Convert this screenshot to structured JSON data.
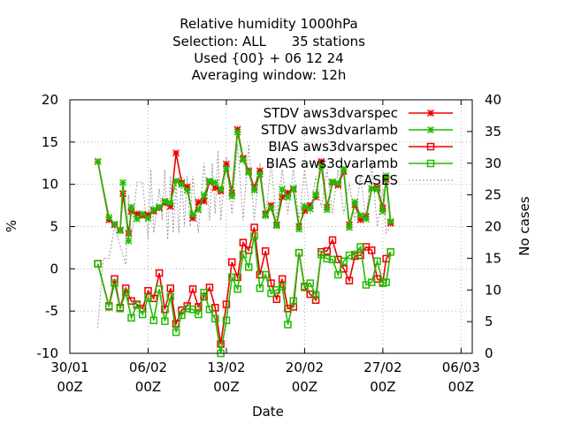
{
  "title_lines": [
    "Relative humidity 1000hPa",
    "Selection: ALL      35 stations",
    "Used {00} + 06 12 24",
    "Averaging window: 12h"
  ],
  "colors": {
    "red": "#ee0000",
    "green": "#22bb00",
    "cases": "#999999",
    "grid": "#b0b0b0"
  },
  "chart_data": {
    "type": "line",
    "title": "Relative humidity 1000hPa / Selection: ALL 35 stations / Used {00} + 06 12 24 / Averaging window: 12h",
    "xlabel": "Date",
    "ylabel": "%",
    "y2label": "No cases",
    "xlim": [
      0,
      36
    ],
    "ylim": [
      -10,
      20
    ],
    "y2lim": [
      0,
      40
    ],
    "grid": true,
    "legend_position": "top-right",
    "x_ticks": [
      {
        "x": 0,
        "line1": "30/01",
        "line2": "00Z"
      },
      {
        "x": 7,
        "line1": "06/02",
        "line2": "00Z"
      },
      {
        "x": 14,
        "line1": "13/02",
        "line2": "00Z"
      },
      {
        "x": 21,
        "line1": "20/02",
        "line2": "00Z"
      },
      {
        "x": 28,
        "line1": "27/02",
        "line2": "00Z"
      },
      {
        "x": 35,
        "line1": "06/03",
        "line2": "00Z"
      }
    ],
    "y_ticks": [
      -10,
      -5,
      0,
      5,
      10,
      15,
      20
    ],
    "y2_ticks": [
      0,
      5,
      10,
      15,
      20,
      25,
      30,
      35,
      40
    ],
    "series": [
      {
        "name": "STDV aws3dvarspec",
        "axis": "y1",
        "color": "#ee0000",
        "marker": "star",
        "points": [
          [
            2.5,
            12.7
          ],
          [
            3.5,
            5.8
          ],
          [
            4.0,
            5.2
          ],
          [
            4.5,
            4.6
          ],
          [
            4.75,
            8.9
          ],
          [
            5.25,
            4.2
          ],
          [
            5.5,
            6.8
          ],
          [
            6.0,
            6.5
          ],
          [
            6.5,
            6.3
          ],
          [
            7.0,
            6.4
          ],
          [
            7.5,
            6.8
          ],
          [
            8.0,
            7.2
          ],
          [
            8.5,
            7.8
          ],
          [
            9.0,
            7.4
          ],
          [
            9.5,
            13.7
          ],
          [
            10.0,
            10.2
          ],
          [
            10.5,
            9.7
          ],
          [
            11.0,
            6.0
          ],
          [
            11.5,
            7.9
          ],
          [
            12.0,
            8.0
          ],
          [
            12.5,
            10.3
          ],
          [
            13.0,
            9.6
          ],
          [
            13.5,
            9.2
          ],
          [
            14.0,
            12.4
          ],
          [
            14.5,
            9.0
          ],
          [
            15.0,
            16.5
          ],
          [
            15.5,
            13.1
          ],
          [
            16.0,
            11.6
          ],
          [
            16.5,
            9.6
          ],
          [
            17.0,
            11.6
          ],
          [
            17.5,
            6.5
          ],
          [
            18.0,
            7.5
          ],
          [
            18.5,
            5.2
          ],
          [
            19.0,
            8.5
          ],
          [
            19.5,
            9.0
          ],
          [
            20.0,
            9.4
          ],
          [
            20.5,
            5.0
          ],
          [
            21.0,
            6.9
          ],
          [
            21.5,
            7.5
          ],
          [
            22.0,
            8.5
          ],
          [
            22.5,
            12.7
          ],
          [
            23.0,
            7.3
          ],
          [
            23.5,
            10.2
          ],
          [
            24.0,
            9.9
          ],
          [
            24.5,
            11.5
          ],
          [
            25.0,
            5.2
          ],
          [
            25.5,
            7.6
          ],
          [
            26.0,
            5.8
          ],
          [
            26.5,
            6.2
          ],
          [
            27.0,
            9.5
          ],
          [
            27.5,
            9.6
          ],
          [
            28.0,
            7.2
          ],
          [
            28.3,
            10.6
          ],
          [
            28.7,
            5.4
          ]
        ]
      },
      {
        "name": "STDV aws3dvarlamb",
        "axis": "y1",
        "color": "#22bb00",
        "marker": "star",
        "points": [
          [
            2.5,
            12.7
          ],
          [
            3.5,
            6.1
          ],
          [
            4.0,
            5.3
          ],
          [
            4.5,
            4.5
          ],
          [
            4.75,
            10.2
          ],
          [
            5.25,
            3.3
          ],
          [
            5.5,
            7.3
          ],
          [
            6.0,
            5.9
          ],
          [
            6.5,
            6.5
          ],
          [
            7.0,
            6.0
          ],
          [
            7.5,
            7.0
          ],
          [
            8.0,
            7.3
          ],
          [
            8.5,
            8.0
          ],
          [
            9.0,
            7.8
          ],
          [
            9.5,
            10.4
          ],
          [
            10.0,
            10.0
          ],
          [
            10.5,
            9.3
          ],
          [
            11.0,
            6.4
          ],
          [
            11.5,
            7.0
          ],
          [
            12.0,
            8.7
          ],
          [
            12.5,
            10.4
          ],
          [
            13.0,
            10.2
          ],
          [
            13.5,
            9.4
          ],
          [
            14.0,
            11.9
          ],
          [
            14.5,
            8.6
          ],
          [
            15.0,
            16.2
          ],
          [
            15.5,
            12.9
          ],
          [
            16.0,
            11.4
          ],
          [
            16.5,
            9.3
          ],
          [
            17.0,
            11.2
          ],
          [
            17.5,
            6.3
          ],
          [
            18.0,
            7.2
          ],
          [
            18.5,
            5.1
          ],
          [
            19.0,
            9.4
          ],
          [
            19.5,
            8.5
          ],
          [
            20.0,
            9.5
          ],
          [
            20.5,
            4.7
          ],
          [
            21.0,
            7.4
          ],
          [
            21.5,
            7.1
          ],
          [
            22.0,
            8.8
          ],
          [
            22.5,
            12.2
          ],
          [
            23.0,
            7.0
          ],
          [
            23.5,
            10.3
          ],
          [
            24.0,
            10.1
          ],
          [
            24.5,
            11.8
          ],
          [
            25.0,
            4.9
          ],
          [
            25.5,
            7.9
          ],
          [
            26.0,
            6.3
          ],
          [
            26.5,
            5.9
          ],
          [
            27.0,
            9.5
          ],
          [
            27.5,
            9.4
          ],
          [
            28.0,
            6.8
          ],
          [
            28.3,
            11.0
          ],
          [
            28.7,
            5.6
          ]
        ]
      },
      {
        "name": "BIAS aws3dvarspec",
        "axis": "y1",
        "color": "#ee0000",
        "marker": "square",
        "points": [
          [
            2.5,
            0.6
          ],
          [
            3.5,
            -4.4
          ],
          [
            4.0,
            -1.2
          ],
          [
            4.5,
            -4.6
          ],
          [
            5.0,
            -2.3
          ],
          [
            5.5,
            -3.8
          ],
          [
            6.0,
            -4.2
          ],
          [
            6.5,
            -4.7
          ],
          [
            7.0,
            -2.6
          ],
          [
            7.5,
            -3.5
          ],
          [
            8.0,
            -0.5
          ],
          [
            8.5,
            -4.8
          ],
          [
            9.0,
            -2.3
          ],
          [
            9.5,
            -6.5
          ],
          [
            10.0,
            -4.9
          ],
          [
            10.5,
            -4.4
          ],
          [
            11.0,
            -2.4
          ],
          [
            11.5,
            -4.5
          ],
          [
            12.0,
            -3.3
          ],
          [
            12.5,
            -2.2
          ],
          [
            13.0,
            -4.6
          ],
          [
            13.5,
            -8.9
          ],
          [
            14.0,
            -4.2
          ],
          [
            14.5,
            0.8
          ],
          [
            15.0,
            -1.0
          ],
          [
            15.5,
            3.1
          ],
          [
            16.0,
            2.2
          ],
          [
            16.5,
            4.9
          ],
          [
            17.0,
            -0.7
          ],
          [
            17.5,
            2.1
          ],
          [
            18.0,
            -1.7
          ],
          [
            18.5,
            -3.6
          ],
          [
            19.0,
            -1.2
          ],
          [
            19.5,
            -4.7
          ],
          [
            20.0,
            -4.5
          ],
          [
            20.5,
            1.9
          ],
          [
            21.0,
            -2.1
          ],
          [
            21.5,
            -3.0
          ],
          [
            22.0,
            -3.7
          ],
          [
            22.5,
            2.0
          ],
          [
            23.0,
            2.1
          ],
          [
            23.5,
            3.4
          ],
          [
            24.0,
            1.1
          ],
          [
            24.5,
            0.0
          ],
          [
            25.0,
            -1.4
          ],
          [
            25.5,
            1.5
          ],
          [
            26.0,
            1.6
          ],
          [
            26.5,
            2.6
          ],
          [
            27.0,
            2.2
          ],
          [
            27.5,
            -1.2
          ],
          [
            28.0,
            -1.6
          ],
          [
            28.3,
            1.2
          ],
          [
            28.7,
            2.0
          ]
        ]
      },
      {
        "name": "BIAS aws3dvarlamb",
        "axis": "y1",
        "color": "#22bb00",
        "marker": "square",
        "points": [
          [
            2.5,
            0.6
          ],
          [
            3.5,
            -4.5
          ],
          [
            4.0,
            -1.7
          ],
          [
            4.5,
            -4.7
          ],
          [
            5.0,
            -2.8
          ],
          [
            5.5,
            -5.8
          ],
          [
            6.0,
            -4.3
          ],
          [
            6.5,
            -5.4
          ],
          [
            7.0,
            -3.4
          ],
          [
            7.5,
            -6.1
          ],
          [
            8.0,
            -2.4
          ],
          [
            8.5,
            -6.2
          ],
          [
            9.0,
            -3.3
          ],
          [
            9.5,
            -7.5
          ],
          [
            10.0,
            -5.5
          ],
          [
            10.5,
            -4.7
          ],
          [
            11.0,
            -4.8
          ],
          [
            11.5,
            -5.4
          ],
          [
            12.0,
            -2.8
          ],
          [
            12.5,
            -4.8
          ],
          [
            13.0,
            -5.9
          ],
          [
            13.5,
            -10.0
          ],
          [
            14.0,
            -6.1
          ],
          [
            14.5,
            -1.0
          ],
          [
            15.0,
            -2.4
          ],
          [
            15.5,
            1.7
          ],
          [
            16.0,
            0.2
          ],
          [
            16.5,
            3.9
          ],
          [
            17.0,
            -2.3
          ],
          [
            17.5,
            -0.7
          ],
          [
            18.0,
            -2.9
          ],
          [
            18.5,
            -2.5
          ],
          [
            19.0,
            -2.1
          ],
          [
            19.5,
            -6.6
          ],
          [
            20.0,
            -3.8
          ],
          [
            20.5,
            1.9
          ],
          [
            21.0,
            -2.2
          ],
          [
            21.5,
            -1.7
          ],
          [
            22.0,
            -3.1
          ],
          [
            22.5,
            1.7
          ],
          [
            23.0,
            1.2
          ],
          [
            23.5,
            1.1
          ],
          [
            24.0,
            -0.7
          ],
          [
            24.5,
            0.9
          ],
          [
            25.0,
            1.6
          ],
          [
            25.5,
            1.7
          ],
          [
            26.0,
            2.6
          ],
          [
            26.5,
            -1.9
          ],
          [
            27.0,
            -1.6
          ],
          [
            27.5,
            0.9
          ],
          [
            28.0,
            -1.7
          ],
          [
            28.3,
            -1.6
          ],
          [
            28.7,
            2.0
          ]
        ]
      },
      {
        "name": "CASES",
        "axis": "y2",
        "color": "#999999",
        "marker": "none",
        "points": [
          [
            2.5,
            4
          ],
          [
            3.0,
            15
          ],
          [
            3.5,
            15
          ],
          [
            4.0,
            20
          ],
          [
            4.5,
            17
          ],
          [
            5.0,
            14
          ],
          [
            5.25,
            25
          ],
          [
            5.5,
            18
          ],
          [
            6.0,
            27
          ],
          [
            6.5,
            27
          ],
          [
            7.0,
            18
          ],
          [
            7.25,
            29
          ],
          [
            7.5,
            19
          ],
          [
            8.0,
            26
          ],
          [
            8.25,
            21
          ],
          [
            8.5,
            29
          ],
          [
            8.75,
            18
          ],
          [
            9.0,
            28
          ],
          [
            9.25,
            19
          ],
          [
            9.5,
            27
          ],
          [
            9.75,
            19
          ],
          [
            10.0,
            28
          ],
          [
            10.25,
            20
          ],
          [
            10.5,
            28
          ],
          [
            10.75,
            20
          ],
          [
            11.0,
            28
          ],
          [
            11.5,
            19
          ],
          [
            12.0,
            30
          ],
          [
            12.25,
            26
          ],
          [
            12.5,
            21
          ],
          [
            12.75,
            30
          ],
          [
            13.0,
            22
          ],
          [
            13.25,
            32
          ],
          [
            13.5,
            21
          ],
          [
            14.0,
            31
          ],
          [
            14.5,
            22
          ],
          [
            15.0,
            33
          ],
          [
            15.5,
            21
          ],
          [
            16.0,
            33
          ],
          [
            16.5,
            21
          ],
          [
            17.0,
            30
          ],
          [
            17.5,
            21
          ],
          [
            18.0,
            30
          ],
          [
            18.5,
            21
          ],
          [
            19.0,
            29
          ],
          [
            19.5,
            22
          ],
          [
            20.0,
            29
          ],
          [
            20.5,
            21
          ],
          [
            21.0,
            29
          ],
          [
            21.5,
            22
          ],
          [
            22.0,
            28
          ],
          [
            22.5,
            23
          ],
          [
            23.0,
            29
          ],
          [
            23.5,
            22
          ],
          [
            24.0,
            29
          ],
          [
            24.5,
            22
          ],
          [
            25.0,
            27
          ],
          [
            25.5,
            21
          ],
          [
            26.0,
            28
          ],
          [
            26.5,
            21
          ],
          [
            27.0,
            30
          ],
          [
            27.5,
            20
          ],
          [
            28.0,
            26
          ],
          [
            28.3,
            19
          ],
          [
            28.7,
            20
          ]
        ]
      }
    ]
  }
}
